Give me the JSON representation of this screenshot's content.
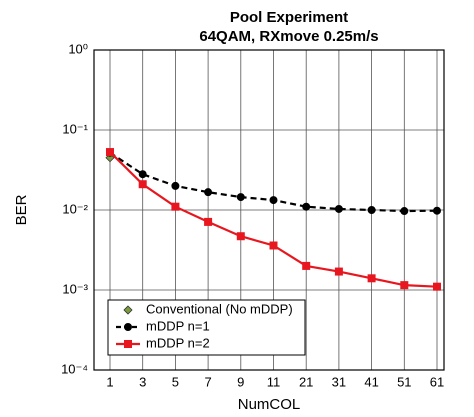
{
  "chart_data": {
    "type": "line",
    "title": "Pool Experiment",
    "subtitle": "64QAM, RXmove 0.25m/s",
    "x_label": "NumCOL",
    "y_label": "BER",
    "categories": [
      "1",
      "3",
      "5",
      "7",
      "9",
      "11",
      "21",
      "31",
      "41",
      "51",
      "61"
    ],
    "log_y": true,
    "grid": true,
    "legend": "lower left",
    "ylim": [
      0.0001,
      1
    ],
    "yticks": [
      {
        "value": 0.0001,
        "label": "10⁻⁴"
      },
      {
        "value": 0.001,
        "label": "10⁻³"
      },
      {
        "value": 0.01,
        "label": "10⁻²"
      },
      {
        "value": 0.1,
        "label": "10⁻¹"
      },
      {
        "value": 1,
        "label": "10⁰"
      }
    ],
    "series": [
      {
        "name": "Conventional (No mDDP)",
        "color": "#7c9b3c",
        "marker": "diamond",
        "dashed": false,
        "values": [
          0.045,
          null,
          null,
          null,
          null,
          null,
          null,
          null,
          null,
          null,
          null
        ]
      },
      {
        "name": "mDDP n=1",
        "color": "#000000",
        "marker": "circle",
        "dashed": true,
        "values": [
          0.052,
          0.028,
          0.02,
          0.0167,
          0.0145,
          0.0133,
          0.011,
          0.0103,
          0.01,
          0.0097,
          0.0098
        ]
      },
      {
        "name": "mDDP n=2",
        "color": "#e8171f",
        "marker": "square",
        "dashed": false,
        "values": [
          0.053,
          0.021,
          0.011,
          0.0071,
          0.0047,
          0.0036,
          0.002,
          0.0017,
          0.0014,
          0.00115,
          0.0011
        ]
      }
    ]
  }
}
